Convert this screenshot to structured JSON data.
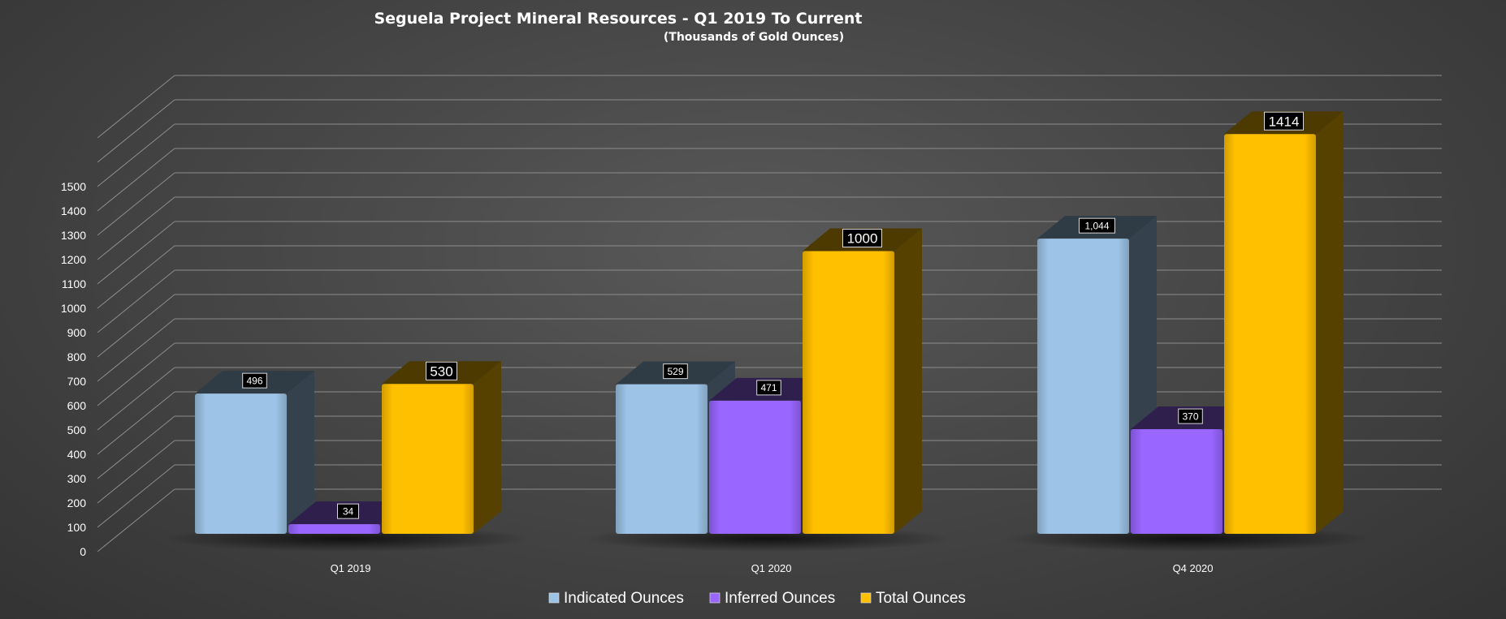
{
  "chart_data": {
    "type": "bar",
    "title": "Seguela Project Mineral Resources - Q1 2019 To Current",
    "subtitle": "(Thousands of Gold Ounces)",
    "categories": [
      "Q1 2019",
      "Q1 2020",
      "Q4 2020"
    ],
    "series": [
      {
        "name": "Indicated Ounces",
        "color": "#9DC3E6",
        "values": [
          496,
          529,
          1044
        ],
        "labels": [
          "496",
          "529",
          "1,044"
        ]
      },
      {
        "name": "Inferred Ounces",
        "color": "#9966FF",
        "values": [
          34,
          471,
          370
        ],
        "labels": [
          "34",
          "471",
          "370"
        ]
      },
      {
        "name": "Total Ounces",
        "color": "#FFC000",
        "values": [
          530,
          1000,
          1414
        ],
        "labels": [
          "530",
          "1000",
          "1414"
        ]
      }
    ],
    "y_ticks": [
      0,
      100,
      200,
      300,
      400,
      500,
      600,
      700,
      800,
      900,
      1000,
      1100,
      1200,
      1300,
      1400,
      1500
    ],
    "ylim": [
      0,
      1700
    ],
    "grid": true,
    "legend": "bottom",
    "three_d": true
  }
}
